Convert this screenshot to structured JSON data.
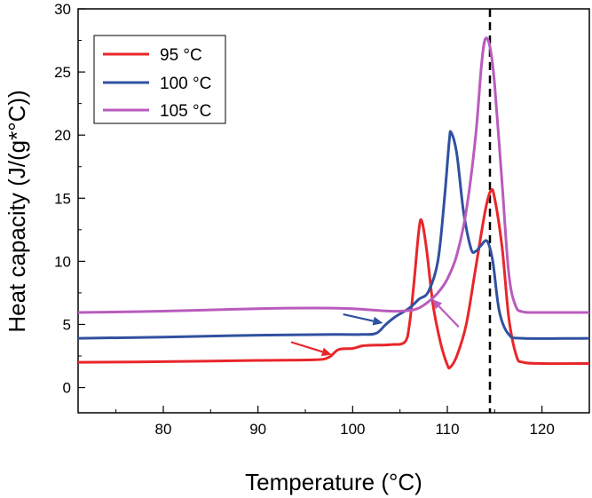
{
  "chart_data": {
    "type": "line",
    "title": "",
    "xlabel": "Temperature (°C)",
    "ylabel": "Heat capacity (J/(g*°C))",
    "xlim": [
      71,
      125
    ],
    "ylim": [
      -2,
      30
    ],
    "x_ticks": [
      80,
      90,
      100,
      110,
      120
    ],
    "y_ticks": [
      0,
      5,
      10,
      15,
      20,
      25,
      30
    ],
    "grid": false,
    "legend_position": "top-left",
    "reference_line": {
      "x": 114.5,
      "style": "dashed",
      "color": "#000000"
    },
    "series": [
      {
        "name": "95 °C",
        "color": "#e8262a",
        "points": [
          [
            71,
            2.0
          ],
          [
            80,
            2.05
          ],
          [
            90,
            2.15
          ],
          [
            96,
            2.2
          ],
          [
            97.5,
            2.4
          ],
          [
            98.5,
            3.0
          ],
          [
            100,
            3.1
          ],
          [
            101,
            3.3
          ],
          [
            102,
            3.35
          ],
          [
            104,
            3.4
          ],
          [
            105.5,
            3.6
          ],
          [
            106,
            5.0
          ],
          [
            106.5,
            8.5
          ],
          [
            107,
            12.5
          ],
          [
            107.3,
            13.2
          ],
          [
            107.8,
            11.0
          ],
          [
            108.5,
            6.5
          ],
          [
            109.3,
            3.5
          ],
          [
            110,
            1.8
          ],
          [
            110.3,
            1.6
          ],
          [
            111,
            2.5
          ],
          [
            112,
            5.0
          ],
          [
            113,
            9.5
          ],
          [
            114,
            14.0
          ],
          [
            114.6,
            15.6
          ],
          [
            115,
            15.0
          ],
          [
            115.8,
            11.0
          ],
          [
            116.5,
            5.5
          ],
          [
            117.3,
            2.5
          ],
          [
            118,
            2.0
          ],
          [
            120,
            1.9
          ],
          [
            125,
            1.9
          ]
        ]
      },
      {
        "name": "100 °C",
        "color": "#3050a0",
        "points": [
          [
            71,
            3.9
          ],
          [
            80,
            4.0
          ],
          [
            90,
            4.15
          ],
          [
            98,
            4.2
          ],
          [
            101,
            4.2
          ],
          [
            102.5,
            4.3
          ],
          [
            103.5,
            5.0
          ],
          [
            104.5,
            5.6
          ],
          [
            106,
            6.3
          ],
          [
            107,
            7.0
          ],
          [
            108,
            7.6
          ],
          [
            109,
            10.0
          ],
          [
            109.7,
            15.0
          ],
          [
            110.2,
            19.5
          ],
          [
            110.4,
            20.2
          ],
          [
            111,
            18.5
          ],
          [
            111.7,
            14.0
          ],
          [
            112.5,
            11.0
          ],
          [
            113,
            10.8
          ],
          [
            113.5,
            11.2
          ],
          [
            114.2,
            11.6
          ],
          [
            114.8,
            10.0
          ],
          [
            115.5,
            6.0
          ],
          [
            116.5,
            4.2
          ],
          [
            118,
            3.9
          ],
          [
            125,
            3.9
          ]
        ]
      },
      {
        "name": "105 °C",
        "color": "#b95cbd",
        "points": [
          [
            71,
            5.95
          ],
          [
            80,
            6.05
          ],
          [
            90,
            6.25
          ],
          [
            96,
            6.3
          ],
          [
            100,
            6.25
          ],
          [
            104,
            6.05
          ],
          [
            106,
            6.1
          ],
          [
            107,
            6.3
          ],
          [
            108,
            6.8
          ],
          [
            109,
            7.5
          ],
          [
            110,
            8.6
          ],
          [
            111,
            10.5
          ],
          [
            112,
            14.0
          ],
          [
            113,
            20.0
          ],
          [
            113.6,
            25.5
          ],
          [
            114,
            27.6
          ],
          [
            114.5,
            27.0
          ],
          [
            115,
            24.0
          ],
          [
            115.8,
            16.0
          ],
          [
            116.5,
            9.0
          ],
          [
            117.2,
            6.5
          ],
          [
            118,
            6.0
          ],
          [
            120,
            5.95
          ],
          [
            125,
            5.95
          ]
        ]
      }
    ],
    "annotations": [
      {
        "type": "arrow",
        "color": "#e8262a",
        "from": [
          93.5,
          3.6
        ],
        "to": [
          97.8,
          2.6
        ]
      },
      {
        "type": "arrow",
        "color": "#3050a0",
        "from": [
          99.0,
          5.8
        ],
        "to": [
          103.2,
          5.1
        ]
      },
      {
        "type": "arrow",
        "color": "#b95cbd",
        "from": [
          111.2,
          4.8
        ],
        "to": [
          108.4,
          7.0
        ]
      }
    ]
  }
}
